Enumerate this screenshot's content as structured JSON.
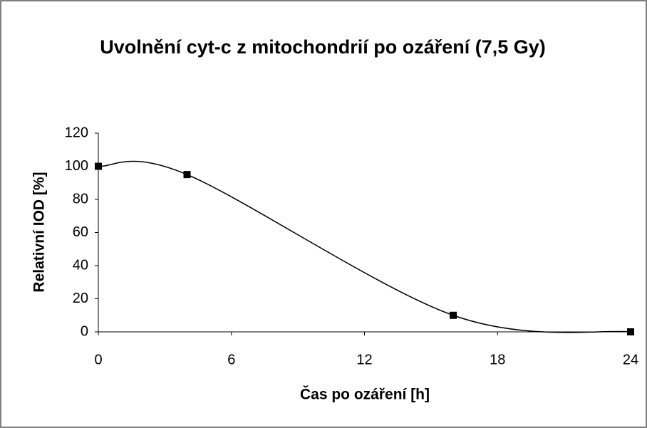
{
  "chart_data": {
    "type": "line",
    "title": "Uvolnění cyt-c z mitochondrií po ozáření (7,5 Gy)",
    "xlabel": "Čas po ozáření [h]",
    "ylabel": "Relativní IOD [%]",
    "x": [
      0,
      4,
      16,
      24
    ],
    "series": [
      {
        "color": "#000000",
        "values": [
          100,
          95,
          10,
          0
        ]
      }
    ],
    "xlim": [
      0,
      24
    ],
    "xticks": [
      0,
      6,
      12,
      18,
      24
    ],
    "ylim": [
      0,
      120
    ],
    "yticks": [
      0,
      20,
      40,
      60,
      80,
      100,
      120
    ],
    "grid": false,
    "smooth": true
  }
}
